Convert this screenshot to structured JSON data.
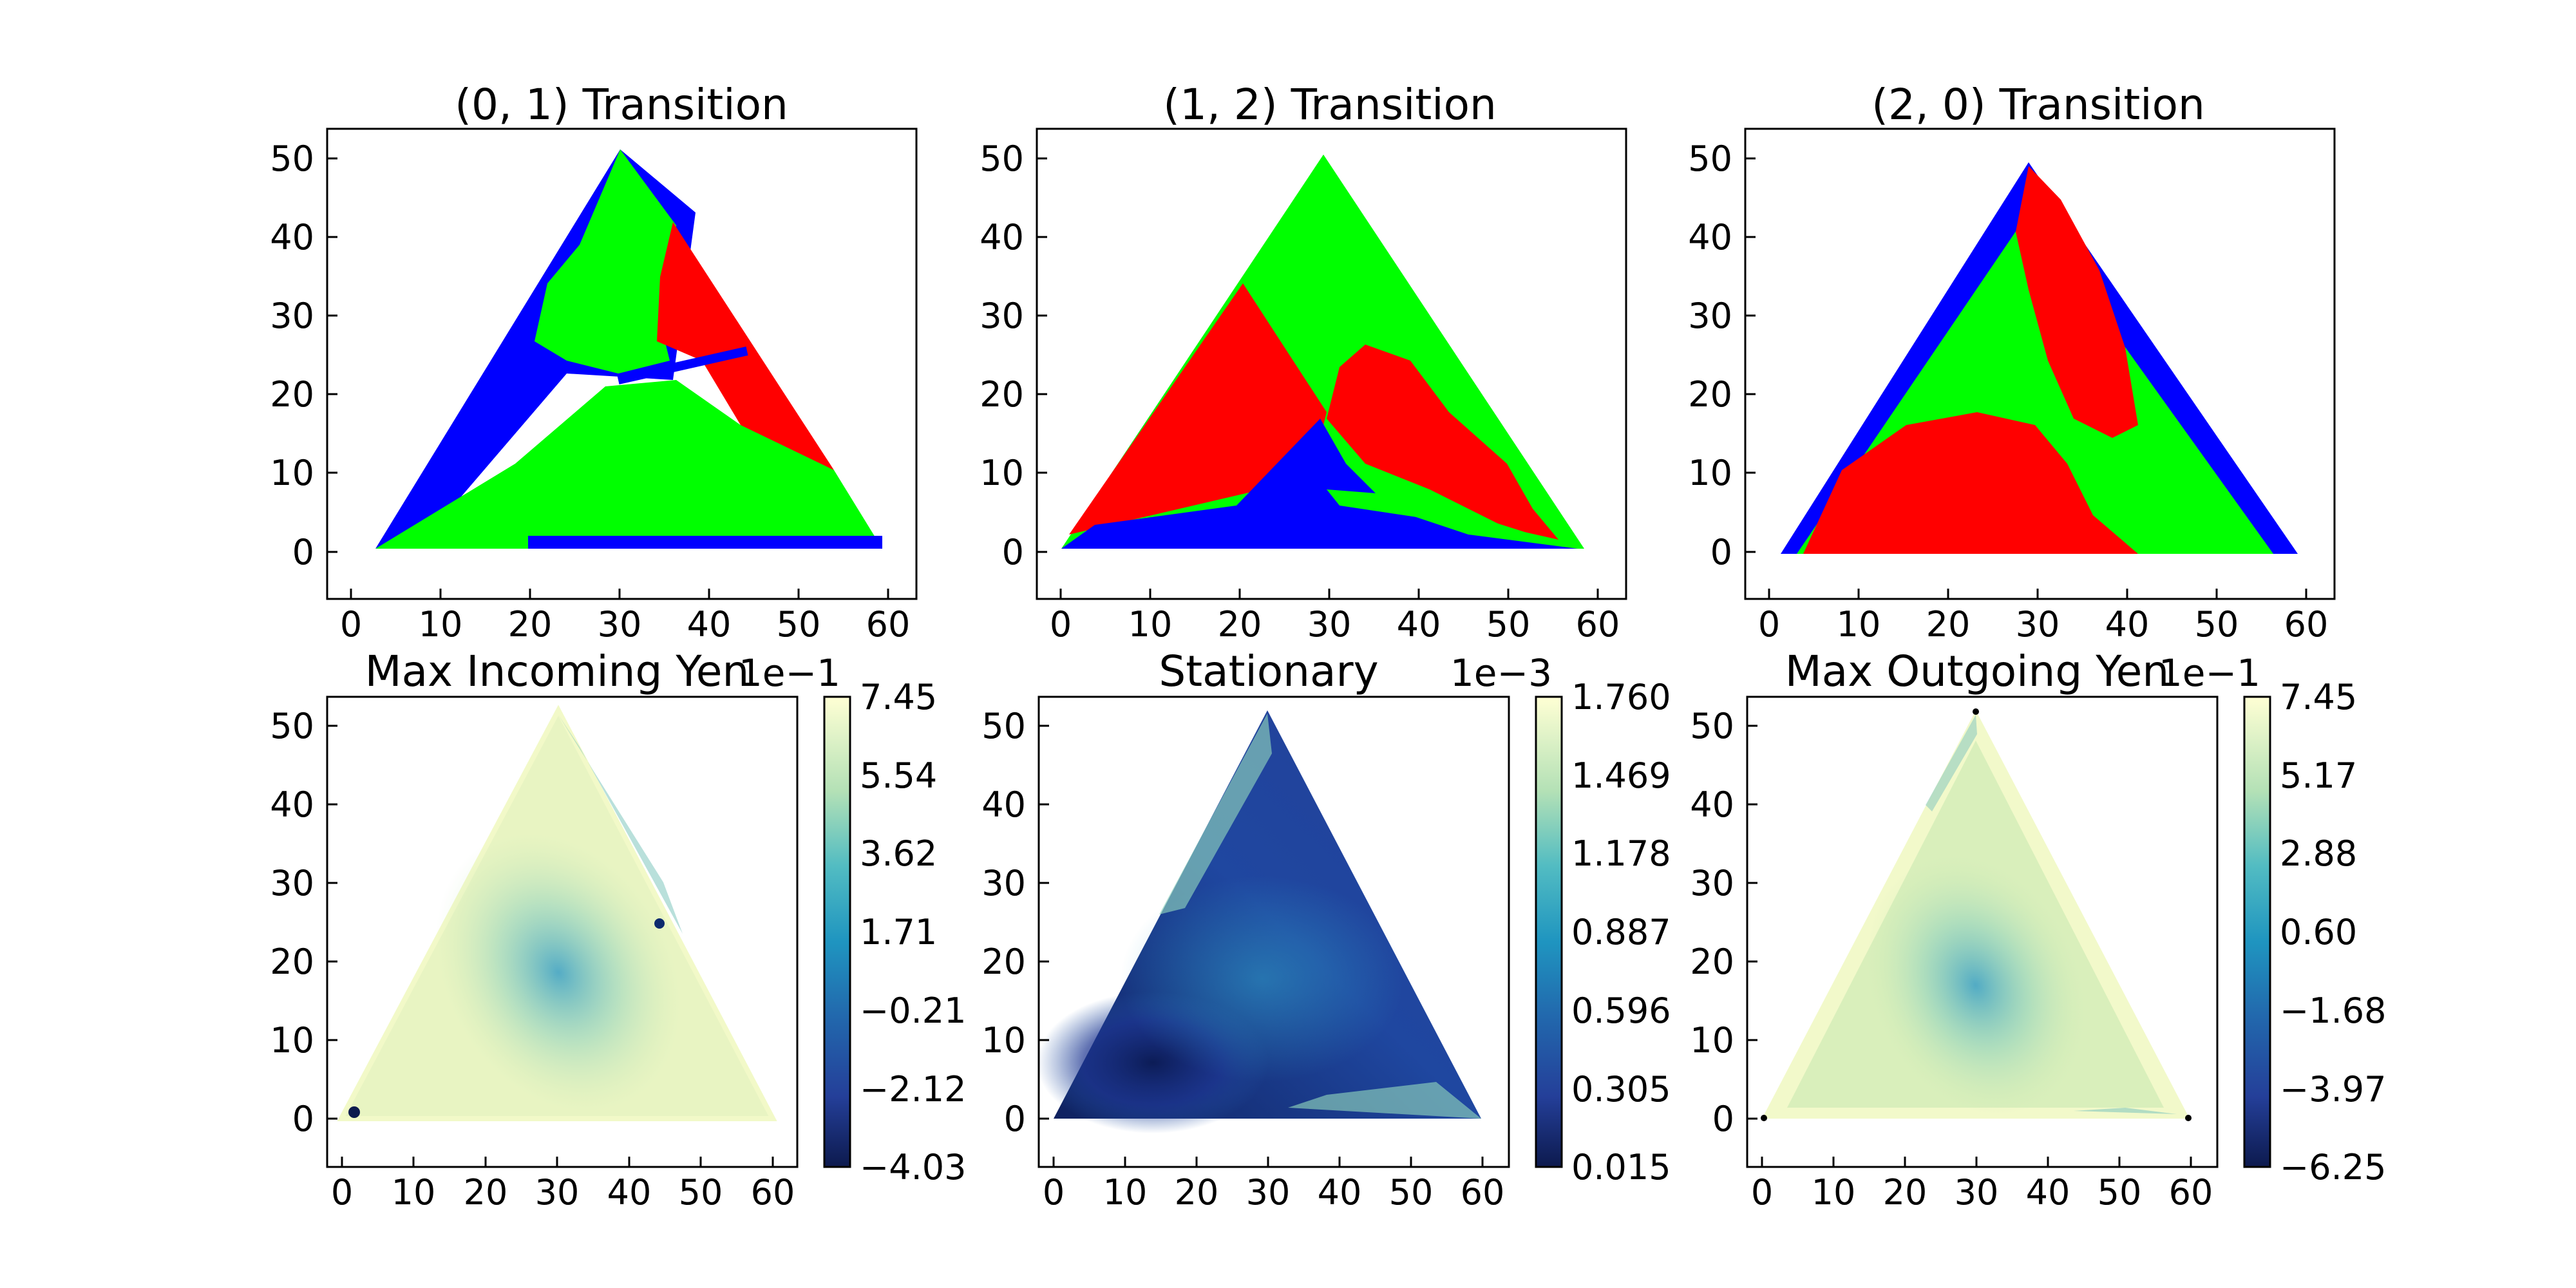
{
  "figure": {
    "charts": [
      {
        "title": "(0, 1) Transition",
        "type": "scatter",
        "x_ticks": [
          "0",
          "10",
          "20",
          "30",
          "40",
          "50",
          "60"
        ],
        "y_ticks": [
          "0",
          "10",
          "20",
          "30",
          "40",
          "50"
        ]
      },
      {
        "title": "(1, 2) Transition",
        "type": "scatter",
        "x_ticks": [
          "0",
          "10",
          "20",
          "30",
          "40",
          "50",
          "60"
        ],
        "y_ticks": [
          "0",
          "10",
          "20",
          "30",
          "40",
          "50"
        ]
      },
      {
        "title": "(2, 0) Transition",
        "type": "scatter",
        "x_ticks": [
          "0",
          "10",
          "20",
          "30",
          "40",
          "50",
          "60"
        ],
        "y_ticks": [
          "0",
          "10",
          "20",
          "30",
          "40",
          "50"
        ]
      },
      {
        "title": "Max Incoming Yen",
        "type": "heatmap",
        "x_ticks": [
          "0",
          "10",
          "20",
          "30",
          "40",
          "50",
          "60"
        ],
        "y_ticks": [
          "0",
          "10",
          "20",
          "30",
          "40",
          "50"
        ],
        "colorbar_offset": "1e−1",
        "colorbar_ticks": [
          "7.45",
          "5.54",
          "3.62",
          "1.71",
          "−0.21",
          "−2.12",
          "−4.03"
        ]
      },
      {
        "title": "Stationary",
        "type": "heatmap",
        "x_ticks": [
          "0",
          "10",
          "20",
          "30",
          "40",
          "50",
          "60"
        ],
        "y_ticks": [
          "0",
          "10",
          "20",
          "30",
          "40",
          "50"
        ],
        "colorbar_offset": "1e−3",
        "colorbar_ticks": [
          "1.760",
          "1.469",
          "1.178",
          "0.887",
          "0.596",
          "0.305",
          "0.015"
        ]
      },
      {
        "title": "Max Outgoing Yen",
        "type": "heatmap",
        "x_ticks": [
          "0",
          "10",
          "20",
          "30",
          "40",
          "50",
          "60"
        ],
        "y_ticks": [
          "0",
          "10",
          "20",
          "30",
          "40",
          "50"
        ],
        "colorbar_offset": "1e−1",
        "colorbar_ticks": [
          "7.45",
          "5.17",
          "2.88",
          "0.60",
          "−1.68",
          "−3.97",
          "−6.25"
        ]
      }
    ]
  },
  "chart_data": [
    {
      "type": "scatter",
      "title": "(0, 1) Transition",
      "xlim": [
        -3,
        63
      ],
      "ylim": [
        -6,
        54
      ],
      "simplex_vertices": [
        [
          0,
          0
        ],
        [
          60,
          0
        ],
        [
          30,
          52
        ]
      ],
      "colors": {
        "class_blue": "#0000ff",
        "class_green": "#00ff00",
        "class_red": "#ff0000"
      }
    },
    {
      "type": "scatter",
      "title": "(1, 2) Transition",
      "xlim": [
        -3,
        63
      ],
      "ylim": [
        -6,
        54
      ],
      "simplex_vertices": [
        [
          0,
          0
        ],
        [
          60,
          0
        ],
        [
          30,
          52
        ]
      ],
      "colors": {
        "class_blue": "#0000ff",
        "class_green": "#00ff00",
        "class_red": "#ff0000"
      }
    },
    {
      "type": "scatter",
      "title": "(2, 0) Transition",
      "xlim": [
        -3,
        63
      ],
      "ylim": [
        -6,
        54
      ],
      "simplex_vertices": [
        [
          0,
          0
        ],
        [
          60,
          0
        ],
        [
          30,
          52
        ]
      ],
      "colors": {
        "class_blue": "#0000ff",
        "class_green": "#00ff00",
        "class_red": "#ff0000"
      }
    },
    {
      "type": "heatmap",
      "title": "Max Incoming Yen",
      "xlim": [
        -3,
        63
      ],
      "ylim": [
        -6,
        54
      ],
      "colorbar_range": [
        -0.403,
        0.745
      ],
      "colormap": "YlGnBu"
    },
    {
      "type": "heatmap",
      "title": "Stationary",
      "xlim": [
        -3,
        63
      ],
      "ylim": [
        -6,
        54
      ],
      "colorbar_range": [
        1.5e-05,
        0.00176
      ],
      "colormap": "YlGnBu"
    },
    {
      "type": "heatmap",
      "title": "Max Outgoing Yen",
      "xlim": [
        -3,
        63
      ],
      "ylim": [
        -6,
        54
      ],
      "colorbar_range": [
        -0.625,
        0.745
      ],
      "colormap": "YlGnBu"
    }
  ]
}
